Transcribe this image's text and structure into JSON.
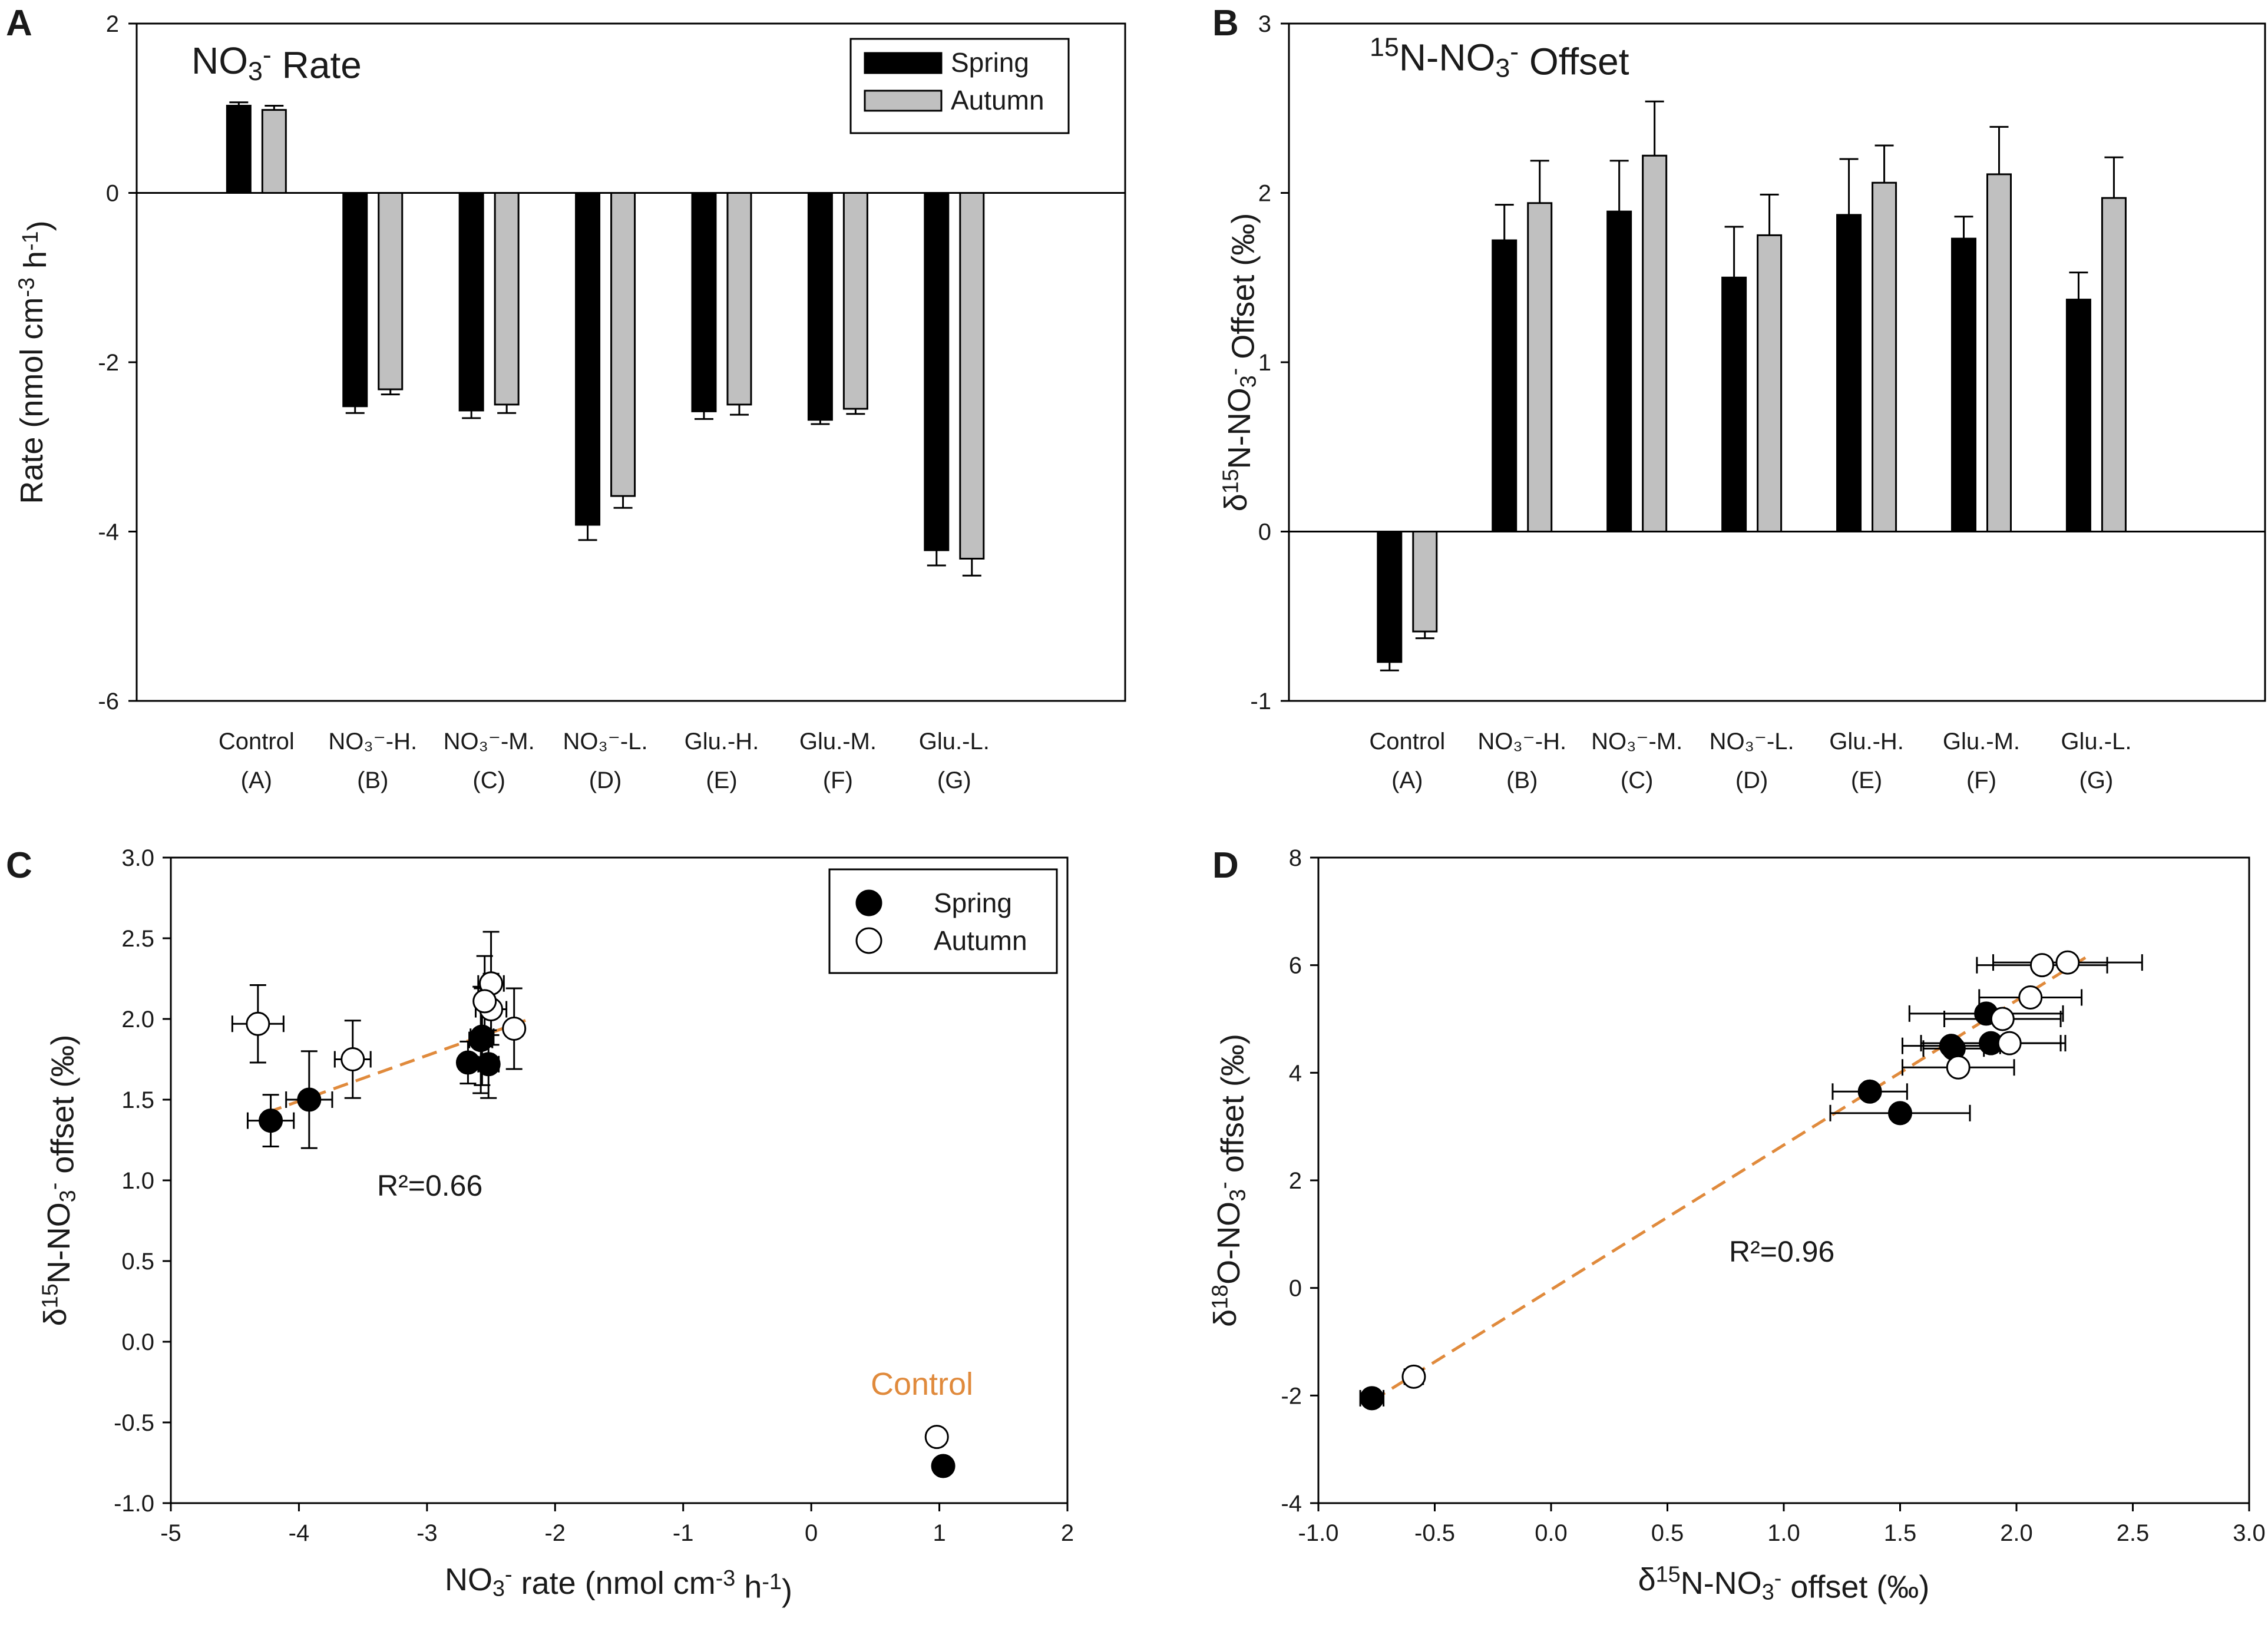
{
  "chart_data": [
    {
      "panel": "A",
      "type": "bar",
      "title": "NO3- Rate",
      "title_main": "NO",
      "title_sub": "3",
      "title_sup": "-",
      "title_rest": " Rate",
      "ylabel_parts": [
        "Rate (nmol cm",
        "-3",
        " h",
        "-1",
        ")"
      ],
      "ylim": [
        -6,
        2
      ],
      "yticks": [
        2,
        0,
        -2,
        -4,
        -6
      ],
      "categories": [
        "Control",
        "NO3--H.",
        "NO3--M.",
        "NO3--L.",
        "Glu.-H.",
        "Glu.-M.",
        "Glu.-L."
      ],
      "category_line1": [
        "Control",
        "NO₃⁻-H.",
        "NO₃⁻-M.",
        "NO₃⁻-L.",
        "Glu.-H.",
        "Glu.-M.",
        "Glu.-L."
      ],
      "category_line2": [
        "(A)",
        "(B)",
        "(C)",
        "(D)",
        "(E)",
        "(F)",
        "(G)"
      ],
      "legend": [
        "Spring",
        "Autumn"
      ],
      "legend_position": "top-right",
      "series": [
        {
          "name": "Spring",
          "color": "#000000",
          "values": [
            1.03,
            -2.52,
            -2.57,
            -3.92,
            -2.58,
            -2.68,
            -4.22
          ],
          "errors": [
            0.04,
            0.08,
            0.09,
            0.18,
            0.09,
            0.05,
            0.18
          ]
        },
        {
          "name": "Autumn",
          "color": "#c0c0c0",
          "values": [
            0.98,
            -2.32,
            -2.5,
            -3.58,
            -2.5,
            -2.55,
            -4.32
          ],
          "errors": [
            0.05,
            0.06,
            0.1,
            0.14,
            0.12,
            0.06,
            0.2
          ]
        }
      ]
    },
    {
      "panel": "B",
      "type": "bar",
      "title_sup_pre": "15",
      "title_main": "N-NO",
      "title_sub": "3",
      "title_sup": "-",
      "title_rest": " Offset",
      "ylabel_parts": [
        "δ",
        "15",
        "N-NO",
        "3",
        "-",
        " Offset (‰)"
      ],
      "ylim": [
        -1,
        3
      ],
      "yticks": [
        3,
        2,
        1,
        0,
        -1
      ],
      "categories": [
        "Control",
        "NO3--H.",
        "NO3--M.",
        "NO3--L.",
        "Glu.-H.",
        "Glu.-M.",
        "Glu.-L."
      ],
      "category_line1": [
        "Control",
        "NO₃⁻-H.",
        "NO₃⁻-M.",
        "NO₃⁻-L.",
        "Glu.-H.",
        "Glu.-M.",
        "Glu.-L."
      ],
      "category_line2": [
        "(A)",
        "(B)",
        "(C)",
        "(D)",
        "(E)",
        "(F)",
        "(G)"
      ],
      "series": [
        {
          "name": "Spring",
          "color": "#000000",
          "values": [
            -0.77,
            1.72,
            1.89,
            1.5,
            1.87,
            1.73,
            1.37
          ],
          "errors": [
            0.05,
            0.21,
            0.3,
            0.3,
            0.33,
            0.13,
            0.16
          ]
        },
        {
          "name": "Autumn",
          "color": "#c0c0c0",
          "values": [
            -0.59,
            1.94,
            2.22,
            1.75,
            2.06,
            2.11,
            1.97
          ],
          "errors": [
            0.04,
            0.25,
            0.32,
            0.24,
            0.22,
            0.28,
            0.24
          ]
        }
      ]
    },
    {
      "panel": "C",
      "type": "scatter",
      "xlabel_parts": [
        "NO",
        "3",
        "-",
        " rate (nmol cm",
        "-3",
        " h",
        "-1",
        ")"
      ],
      "ylabel_parts": [
        "δ",
        "15",
        "N-NO",
        "3",
        "-",
        " offset (‰)"
      ],
      "xlim": [
        -5,
        2
      ],
      "ylim": [
        -1.0,
        3.0
      ],
      "xticks": [
        -5,
        -4,
        -3,
        -2,
        -1,
        0,
        1,
        2
      ],
      "yticks": [
        3.0,
        2.5,
        2.0,
        1.5,
        1.0,
        0.5,
        0.0,
        -0.5,
        -1.0
      ],
      "xtick_labels": [
        "-5",
        "-4",
        "-3",
        "-2",
        "-1",
        "0",
        "1",
        "2"
      ],
      "ytick_labels": [
        "3.0",
        "2.5",
        "2.0",
        "1.5",
        "1.0",
        "0.5",
        "0.0",
        "-0.5",
        "-1.0"
      ],
      "legend": [
        "Spring",
        "Autumn"
      ],
      "legend_position": "top-right",
      "r2_text": "R²=0.66",
      "control_label": "Control",
      "fit_line": {
        "x": [
          -4.25,
          -2.2
        ],
        "y": [
          1.42,
          2.0
        ],
        "color": "#e08a3c"
      },
      "series": [
        {
          "name": "Spring",
          "filled": true,
          "points": [
            {
              "x": 1.03,
              "y": -0.77,
              "xerr": 0,
              "yerr": 0
            },
            {
              "x": -2.52,
              "y": 1.72,
              "xerr": 0.08,
              "yerr": 0.21
            },
            {
              "x": -2.57,
              "y": 1.89,
              "xerr": 0.09,
              "yerr": 0.3
            },
            {
              "x": -3.92,
              "y": 1.5,
              "xerr": 0.18,
              "yerr": 0.3
            },
            {
              "x": -2.58,
              "y": 1.87,
              "xerr": 0.09,
              "yerr": 0.33
            },
            {
              "x": -2.68,
              "y": 1.73,
              "xerr": 0.05,
              "yerr": 0.13
            },
            {
              "x": -4.22,
              "y": 1.37,
              "xerr": 0.18,
              "yerr": 0.16
            }
          ]
        },
        {
          "name": "Autumn",
          "filled": false,
          "points": [
            {
              "x": 0.98,
              "y": -0.59,
              "xerr": 0,
              "yerr": 0
            },
            {
              "x": -2.32,
              "y": 1.94,
              "xerr": 0.06,
              "yerr": 0.25
            },
            {
              "x": -2.5,
              "y": 2.22,
              "xerr": 0.1,
              "yerr": 0.32
            },
            {
              "x": -3.58,
              "y": 1.75,
              "xerr": 0.14,
              "yerr": 0.24
            },
            {
              "x": -2.5,
              "y": 2.06,
              "xerr": 0.12,
              "yerr": 0.22
            },
            {
              "x": -2.55,
              "y": 2.11,
              "xerr": 0.06,
              "yerr": 0.28
            },
            {
              "x": -4.32,
              "y": 1.97,
              "xerr": 0.2,
              "yerr": 0.24
            }
          ]
        }
      ]
    },
    {
      "panel": "D",
      "type": "scatter",
      "xlabel_parts": [
        "δ",
        "15",
        "N-NO",
        "3",
        "-",
        " offset (‰)"
      ],
      "ylabel_parts": [
        "δ",
        "18",
        "O-NO",
        "3",
        "-",
        " offset (‰)"
      ],
      "xlim": [
        -1.0,
        3.0
      ],
      "ylim": [
        -4,
        8
      ],
      "xticks": [
        -1.0,
        -0.5,
        0.0,
        0.5,
        1.0,
        1.5,
        2.0,
        2.5,
        3.0
      ],
      "yticks": [
        8,
        6,
        4,
        2,
        0,
        -2,
        -4
      ],
      "xtick_labels": [
        "-1.0",
        "-0.5",
        "0.0",
        "0.5",
        "1.0",
        "1.5",
        "2.0",
        "2.5",
        "3.0"
      ],
      "ytick_labels": [
        "8",
        "6",
        "4",
        "2",
        "0",
        "-2",
        "-4"
      ],
      "r2_text": "R²=0.96",
      "fit_line": {
        "x": [
          -0.77,
          2.3
        ],
        "y": [
          -2.1,
          6.15
        ],
        "color": "#e08a3c"
      },
      "series": [
        {
          "name": "Spring",
          "filled": true,
          "points": [
            {
              "x": -0.77,
              "y": -2.05,
              "xerr": 0.05,
              "yerr": 0
            },
            {
              "x": 1.72,
              "y": 4.5,
              "xerr": 0.21,
              "yerr": 0
            },
            {
              "x": 1.89,
              "y": 4.55,
              "xerr": 0.3,
              "yerr": 0
            },
            {
              "x": 1.5,
              "y": 3.25,
              "xerr": 0.3,
              "yerr": 0
            },
            {
              "x": 1.87,
              "y": 5.1,
              "xerr": 0.33,
              "yerr": 0
            },
            {
              "x": 1.73,
              "y": 4.45,
              "xerr": 0.13,
              "yerr": 0
            },
            {
              "x": 1.37,
              "y": 3.65,
              "xerr": 0.16,
              "yerr": 0
            }
          ]
        },
        {
          "name": "Autumn",
          "filled": false,
          "points": [
            {
              "x": -0.59,
              "y": -1.65,
              "xerr": 0.04,
              "yerr": 0
            },
            {
              "x": 1.94,
              "y": 5.0,
              "xerr": 0.25,
              "yerr": 0
            },
            {
              "x": 2.22,
              "y": 6.05,
              "xerr": 0.32,
              "yerr": 0
            },
            {
              "x": 1.75,
              "y": 4.1,
              "xerr": 0.24,
              "yerr": 0
            },
            {
              "x": 2.06,
              "y": 5.4,
              "xerr": 0.22,
              "yerr": 0
            },
            {
              "x": 2.11,
              "y": 6.0,
              "xerr": 0.28,
              "yerr": 0
            },
            {
              "x": 1.97,
              "y": 4.55,
              "xerr": 0.24,
              "yerr": 0
            }
          ]
        }
      ]
    }
  ],
  "panel_letters": [
    "A",
    "B",
    "C",
    "D"
  ]
}
